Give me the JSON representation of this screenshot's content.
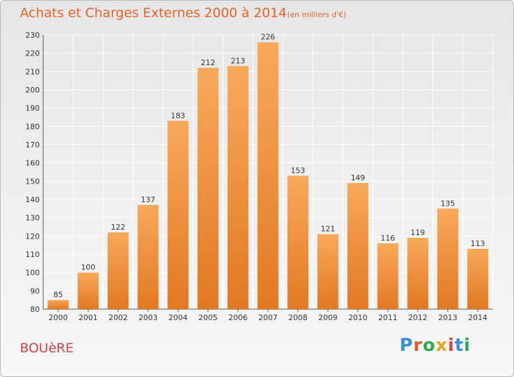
{
  "header": {
    "title": "Achats et Charges Externes 2000 à 2014",
    "unit": "(en milliers d'€)"
  },
  "footer": {
    "place": "BOUèRE",
    "brand": "Proxiti"
  },
  "colors": {
    "bar_light": "#f8a95a",
    "bar_dark": "#e27822",
    "title": "#e3632a",
    "place": "#d9414a",
    "grid": "#ffffff"
  },
  "chart_data": {
    "type": "bar",
    "title": "Achats et Charges Externes 2000 à 2014",
    "subtitle": "(en milliers d'€)",
    "xlabel": "",
    "ylabel": "",
    "categories": [
      "2000",
      "2001",
      "2002",
      "2003",
      "2004",
      "2005",
      "2006",
      "2007",
      "2008",
      "2009",
      "2010",
      "2011",
      "2012",
      "2013",
      "2014"
    ],
    "values": [
      85,
      100,
      122,
      137,
      183,
      212,
      213,
      226,
      153,
      121,
      149,
      116,
      119,
      135,
      113
    ],
    "ylim": [
      80,
      230
    ],
    "yticks": [
      80,
      90,
      100,
      110,
      120,
      130,
      140,
      150,
      160,
      170,
      180,
      190,
      200,
      210,
      220,
      230
    ],
    "grid": true,
    "legend": "none"
  }
}
